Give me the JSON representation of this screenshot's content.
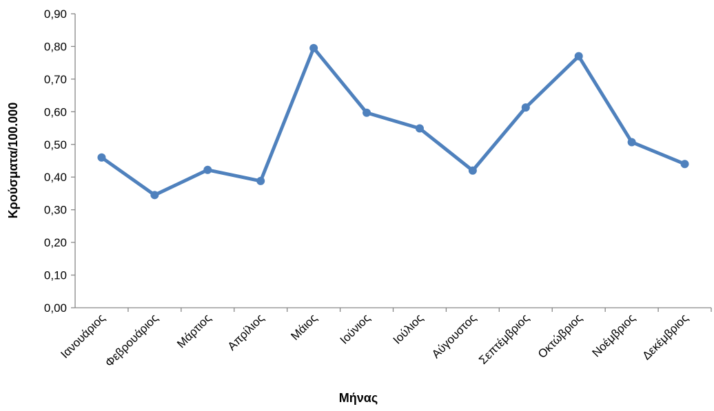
{
  "chart_data": {
    "type": "line",
    "title": "",
    "xlabel": "Μήνας",
    "ylabel": "Κρούσματα/100.000",
    "ylim": [
      0,
      0.9
    ],
    "y_ticks": [
      "0,00",
      "0,10",
      "0,20",
      "0,30",
      "0,40",
      "0,50",
      "0,60",
      "0,70",
      "0,80",
      "0,90"
    ],
    "categories": [
      "Ιανουάριος",
      "Φεβρουάριος",
      "Μάρτιος",
      "Απρίλιος",
      "Μάιος",
      "Ιούνιος",
      "Ιούλιος",
      "Αύγουστος",
      "Σεπτέμβριος",
      "Οκτώβριος",
      "Νοέμβριος",
      "Δεκέμβριος"
    ],
    "series": [
      {
        "values": [
          0.46,
          0.345,
          0.422,
          0.388,
          0.795,
          0.597,
          0.549,
          0.42,
          0.613,
          0.77,
          0.507,
          0.44
        ]
      }
    ],
    "grid": false,
    "legend": "none",
    "color": "#4f81bd"
  }
}
